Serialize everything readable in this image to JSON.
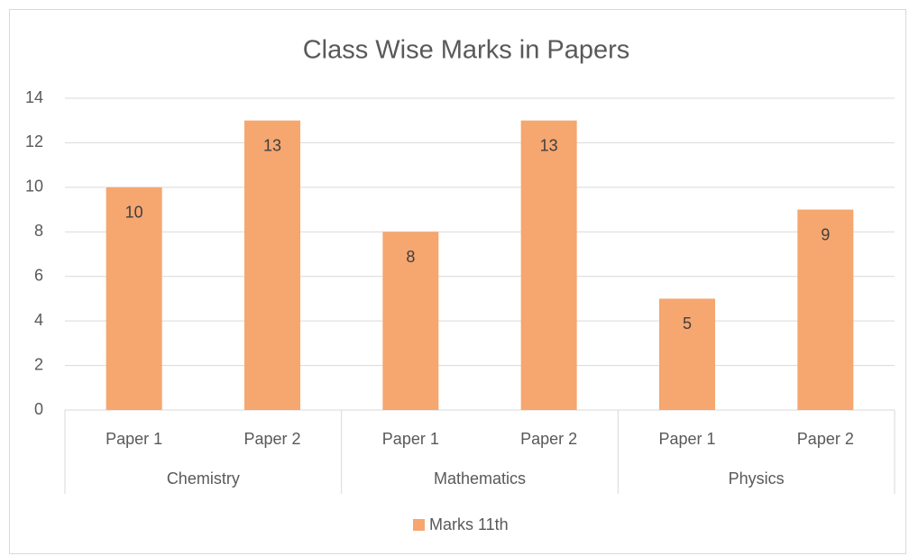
{
  "chart_data": {
    "type": "bar",
    "title": "Class Wise Marks in Papers",
    "categories": [
      "Paper 1",
      "Paper 2",
      "Paper 1",
      "Paper 2",
      "Paper 1",
      "Paper 2"
    ],
    "groups": [
      "Chemistry",
      "Mathematics",
      "Physics"
    ],
    "series": [
      {
        "name": "Marks 11th",
        "color": "#f6a66f",
        "values": [
          10,
          13,
          8,
          13,
          5,
          9
        ]
      }
    ],
    "ylim": [
      0,
      14
    ],
    "yticks": [
      0,
      2,
      4,
      6,
      8,
      10,
      12,
      14
    ],
    "grid": true,
    "legend": "bottom",
    "data_labels": true
  }
}
